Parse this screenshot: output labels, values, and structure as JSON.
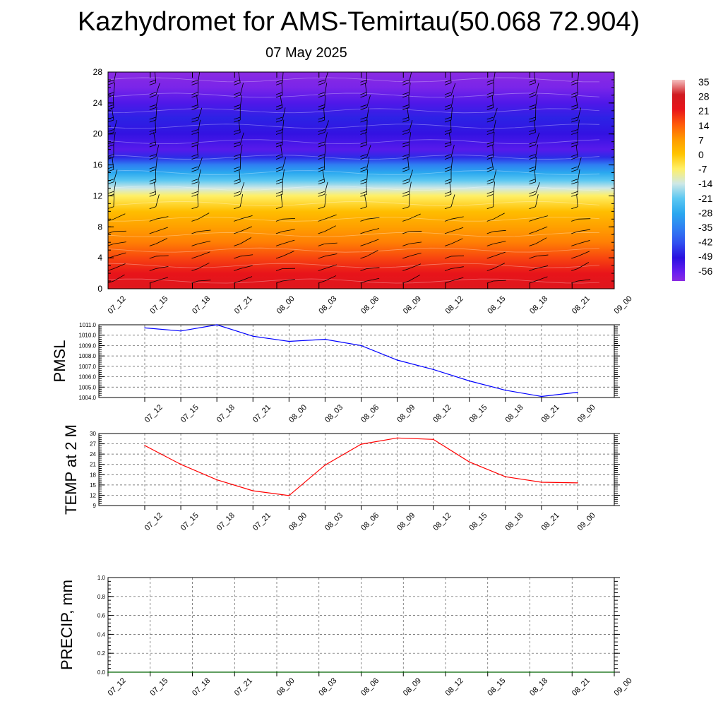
{
  "header": {
    "title": "Kazhydromet for AMS-Temirtau(50.068 72.904)",
    "date": "07 May 2025"
  },
  "chart_data": [
    {
      "type": "heatmap",
      "name": "vertical-section",
      "x": [
        "07_12",
        "07_15",
        "07_18",
        "07_21",
        "08_00",
        "08_03",
        "08_06",
        "08_09",
        "08_12",
        "08_15",
        "08_18",
        "08_21",
        "09_00"
      ],
      "y_ticks": [
        "0",
        "4",
        "8",
        "12",
        "16",
        "20",
        "24",
        "28"
      ],
      "ylim": [
        0,
        28
      ],
      "colorbar": {
        "labels": [
          "35",
          "28",
          "21",
          "14",
          "7",
          "0",
          "-7",
          "-14",
          "-21",
          "-28",
          "-35",
          "-42",
          "-49",
          "-56"
        ],
        "stops": [
          {
            "value": -60,
            "color": "#8a2be2"
          },
          {
            "value": -56,
            "color": "#6a1ef0"
          },
          {
            "value": -49,
            "color": "#2a10e0"
          },
          {
            "value": -42,
            "color": "#3050f0"
          },
          {
            "value": -35,
            "color": "#2f7ff2"
          },
          {
            "value": -28,
            "color": "#2aa8ef"
          },
          {
            "value": -21,
            "color": "#5cc8f2"
          },
          {
            "value": -14,
            "color": "#cfe8e6"
          },
          {
            "value": -7,
            "color": "#fff066"
          },
          {
            "value": 0,
            "color": "#ffc400"
          },
          {
            "value": 7,
            "color": "#ff9a00"
          },
          {
            "value": 14,
            "color": "#ff5a0a"
          },
          {
            "value": 21,
            "color": "#e8141a"
          },
          {
            "value": 28,
            "color": "#d01a20"
          },
          {
            "value": 35,
            "color": "#f5c0c0"
          }
        ]
      },
      "profile": [
        {
          "h": 0,
          "t": 24
        },
        {
          "h": 2,
          "t": 21
        },
        {
          "h": 4,
          "t": 16
        },
        {
          "h": 6,
          "t": 10
        },
        {
          "h": 8,
          "t": 6
        },
        {
          "h": 10,
          "t": 1
        },
        {
          "h": 12,
          "t": -7
        },
        {
          "h": 13,
          "t": -14
        },
        {
          "h": 14,
          "t": -21
        },
        {
          "h": 15,
          "t": -28
        },
        {
          "h": 16,
          "t": -35
        },
        {
          "h": 17,
          "t": -46
        },
        {
          "h": 18,
          "t": -54
        },
        {
          "h": 19,
          "t": -52
        },
        {
          "h": 20,
          "t": -50
        },
        {
          "h": 22,
          "t": -47
        },
        {
          "h": 24,
          "t": -53
        },
        {
          "h": 26,
          "t": -58
        },
        {
          "h": 28,
          "t": -60
        }
      ]
    },
    {
      "type": "line",
      "name": "pmsl",
      "ylabel": "PMSL",
      "x": [
        "07_12",
        "07_15",
        "07_18",
        "07_21",
        "08_00",
        "08_03",
        "08_06",
        "08_09",
        "08_12",
        "08_15",
        "08_18",
        "08_21",
        "09_00"
      ],
      "values": [
        1010.7,
        1010.4,
        1011.0,
        1009.9,
        1009.4,
        1009.6,
        1009.0,
        1007.6,
        1006.7,
        1005.6,
        1004.7,
        1004.1,
        1004.5
      ],
      "ylim": [
        1004.0,
        1011.0
      ],
      "y_ticks": [
        "1004.0",
        "1005.0",
        "1006.0",
        "1007.0",
        "1008.0",
        "1009.0",
        "1010.0",
        "1011.0"
      ],
      "color": "#0000ff",
      "grid": true
    },
    {
      "type": "line",
      "name": "temperature",
      "ylabel": "TEMP at 2 M",
      "x": [
        "07_12",
        "07_15",
        "07_18",
        "07_21",
        "08_00",
        "08_03",
        "08_06",
        "08_09",
        "08_12",
        "08_15",
        "08_18",
        "08_21",
        "09_00"
      ],
      "values": [
        26.5,
        21.0,
        16.5,
        13.3,
        11.9,
        20.8,
        26.9,
        28.7,
        28.3,
        21.7,
        17.4,
        15.8,
        15.6
      ],
      "ylim": [
        9,
        30
      ],
      "y_ticks": [
        "9",
        "12",
        "15",
        "18",
        "21",
        "24",
        "27",
        "30"
      ],
      "color": "#ff0000",
      "grid": true
    },
    {
      "type": "line",
      "name": "precipitation",
      "ylabel": "PRECIP, mm",
      "x": [
        "07_12",
        "07_15",
        "07_18",
        "07_21",
        "08_00",
        "08_03",
        "08_06",
        "08_09",
        "08_12",
        "08_15",
        "08_18",
        "08_21",
        "09_00"
      ],
      "values": [
        0,
        0,
        0,
        0,
        0,
        0,
        0,
        0,
        0,
        0,
        0,
        0,
        0
      ],
      "ylim": [
        0.0,
        1.0
      ],
      "y_ticks": [
        "0.0",
        "0.2",
        "0.4",
        "0.6",
        "0.8",
        "1.0"
      ],
      "color": "#006400",
      "grid": true
    }
  ]
}
